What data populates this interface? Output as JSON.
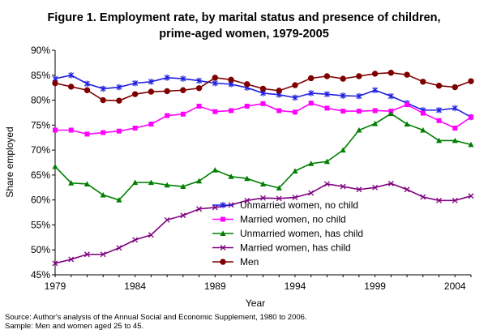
{
  "chart_data": {
    "type": "line",
    "title_line1": "Figure 1. Employment rate, by marital status and presence of children,",
    "title_line2": "prime-aged women, 1979-2005",
    "xlabel": "Year",
    "ylabel": "Share employed",
    "xlim": [
      1979,
      2005
    ],
    "ylim": [
      45,
      90
    ],
    "y_ticks": [
      45,
      50,
      55,
      60,
      65,
      70,
      75,
      80,
      85,
      90
    ],
    "y_tick_labels": [
      "45%",
      "50%",
      "55%",
      "60%",
      "65%",
      "70%",
      "75%",
      "80%",
      "85%",
      "90%"
    ],
    "x_ticks": [
      1979,
      1984,
      1989,
      1994,
      1999,
      2004
    ],
    "x_tick_labels": [
      "1979",
      "1984",
      "1989",
      "1994",
      "1999",
      "2004"
    ],
    "grid": false,
    "legend_position": "right",
    "x": [
      1979,
      1980,
      1981,
      1982,
      1983,
      1984,
      1985,
      1986,
      1987,
      1988,
      1989,
      1990,
      1991,
      1992,
      1993,
      1994,
      1995,
      1996,
      1997,
      1998,
      1999,
      2000,
      2001,
      2002,
      2003,
      2004,
      2005
    ],
    "series": [
      {
        "name": "Unmarried women, no child",
        "color": "#1f1fe0",
        "marker": "star",
        "values": [
          84.3,
          85.0,
          83.3,
          82.3,
          82.6,
          83.4,
          83.7,
          84.5,
          84.3,
          83.9,
          83.4,
          83.2,
          82.5,
          81.4,
          81.1,
          80.5,
          81.4,
          81.2,
          80.9,
          80.8,
          82.0,
          80.8,
          79.4,
          78.0,
          78.0,
          78.4,
          76.6
        ]
      },
      {
        "name": "Married women, no child",
        "color": "#ff00ff",
        "marker": "square",
        "values": [
          74.0,
          74.0,
          73.2,
          73.5,
          73.8,
          74.4,
          75.2,
          76.9,
          77.2,
          78.8,
          77.7,
          77.9,
          78.8,
          79.3,
          77.9,
          77.6,
          79.4,
          78.4,
          77.8,
          77.8,
          77.9,
          77.8,
          79.1,
          77.4,
          75.9,
          74.4,
          76.6
        ]
      },
      {
        "name": "Unmarried women, has child",
        "color": "#007f00",
        "marker": "triangle",
        "values": [
          66.7,
          63.4,
          63.2,
          61.0,
          60.0,
          63.5,
          63.5,
          63.0,
          62.7,
          63.8,
          66.0,
          64.7,
          64.3,
          63.2,
          62.4,
          65.8,
          67.3,
          67.7,
          70.0,
          74.0,
          75.3,
          77.3,
          75.2,
          74.0,
          71.9,
          71.9,
          71.1
        ]
      },
      {
        "name": "Married women, has child",
        "color": "#7f007f",
        "marker": "x",
        "values": [
          47.3,
          48.1,
          49.1,
          49.1,
          50.4,
          52.0,
          53.0,
          56.0,
          56.9,
          58.2,
          58.5,
          59.0,
          59.9,
          60.4,
          60.3,
          60.5,
          61.4,
          63.2,
          62.7,
          62.1,
          62.5,
          63.3,
          62.1,
          60.6,
          59.9,
          59.9,
          60.8
        ]
      },
      {
        "name": "Men",
        "color": "#7f0000",
        "marker": "circle",
        "values": [
          83.4,
          82.7,
          82.0,
          80.0,
          79.9,
          81.2,
          81.7,
          81.8,
          82.0,
          82.4,
          84.5,
          84.1,
          83.2,
          82.3,
          81.9,
          83.0,
          84.4,
          84.8,
          84.3,
          84.8,
          85.3,
          85.5,
          85.1,
          83.7,
          82.9,
          82.6,
          83.8
        ]
      }
    ]
  },
  "source_note": {
    "line1": "Source: Author's analysis of the Annual Social and Economic Supplement, 1980 to 2006.",
    "line2": "Sample: Men and women aged 25 to 45."
  }
}
